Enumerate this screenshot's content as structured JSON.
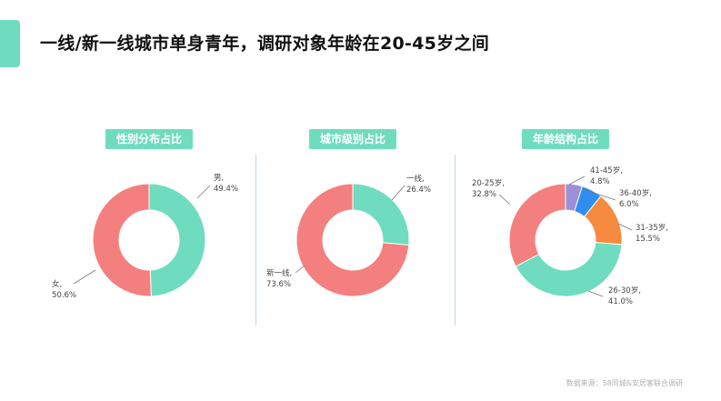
{
  "page": {
    "title": "一线/新一线城市单身青年，调研对象年龄在20-45岁之间",
    "source": "数据来源：58同城&安居客联合调研"
  },
  "colors": {
    "accent": "#6fdcbf",
    "teal": "#6fdcbf",
    "salmon": "#f47f7f",
    "purple": "#9b8fd8",
    "blue": "#2f8ef0",
    "orange": "#f68a3e"
  },
  "chart_data": [
    {
      "type": "pie",
      "title": "性别分布占比",
      "slices": [
        {
          "label": "男,",
          "value": 49.4,
          "value_label": "49.4%",
          "color": "#6fdcbf"
        },
        {
          "label": "女,",
          "value": 50.6,
          "value_label": "50.6%",
          "color": "#f47f7f"
        }
      ]
    },
    {
      "type": "pie",
      "title": "城市级别占比",
      "slices": [
        {
          "label": "一线,",
          "value": 26.4,
          "value_label": "26.4%",
          "color": "#6fdcbf"
        },
        {
          "label": "新一线,",
          "value": 73.6,
          "value_label": "73.6%",
          "color": "#f47f7f"
        }
      ]
    },
    {
      "type": "pie",
      "title": "年龄结构占比",
      "slices": [
        {
          "label": "41-45岁,",
          "value": 4.8,
          "value_label": "4.8%",
          "color": "#9b8fd8"
        },
        {
          "label": "36-40岁,",
          "value": 6.0,
          "value_label": "6.0%",
          "color": "#2f8ef0"
        },
        {
          "label": "31-35岁,",
          "value": 15.5,
          "value_label": "15.5%",
          "color": "#f68a3e"
        },
        {
          "label": "26-30岁,",
          "value": 41.0,
          "value_label": "41.0%",
          "color": "#6fdcbf"
        },
        {
          "label": "20-25岁,",
          "value": 32.8,
          "value_label": "32.8%",
          "color": "#f47f7f"
        }
      ]
    }
  ]
}
